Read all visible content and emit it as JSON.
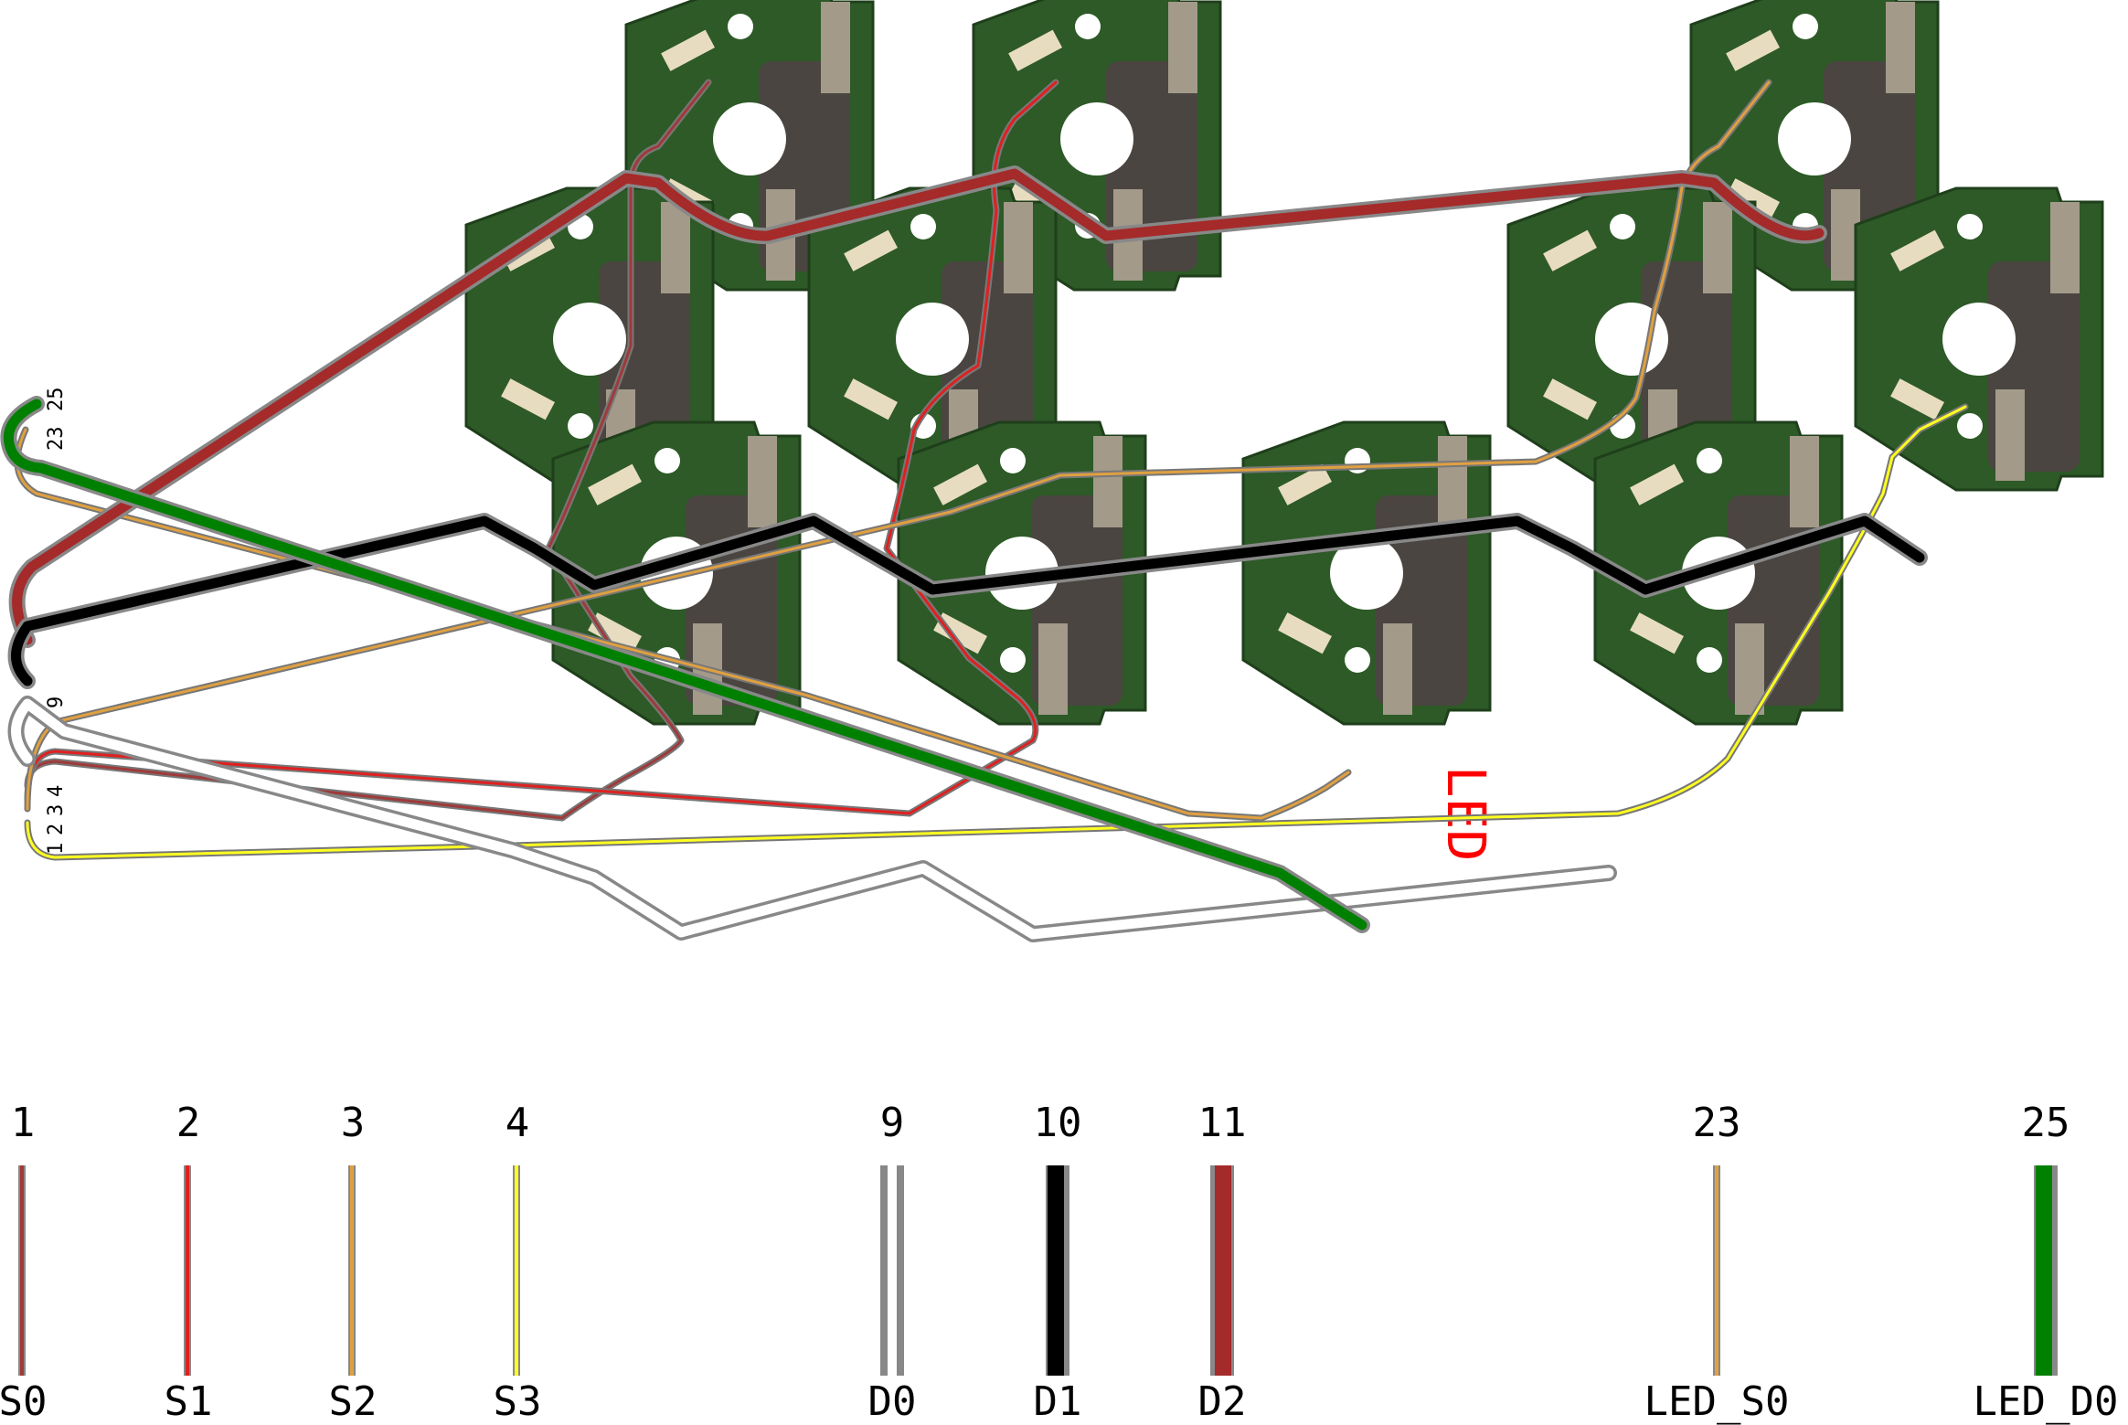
{
  "connector": {
    "labels": [
      {
        "id": "c25",
        "text": "25"
      },
      {
        "id": "c23",
        "text": "23"
      },
      {
        "id": "c9",
        "text": "9"
      },
      {
        "id": "c4",
        "text": "4"
      },
      {
        "id": "c3",
        "text": "3"
      },
      {
        "id": "c2",
        "text": "2"
      },
      {
        "id": "c1",
        "text": "1"
      }
    ]
  },
  "switch_label": "LED",
  "wires": [
    {
      "pin": "1",
      "name": "S0",
      "color": "#a03a3a"
    },
    {
      "pin": "2",
      "name": "S1",
      "color": "#e02020"
    },
    {
      "pin": "3",
      "name": "S2",
      "color": "#e0a040"
    },
    {
      "pin": "4",
      "name": "S3",
      "color": "#ffff20"
    },
    {
      "pin": "9",
      "name": "D0",
      "color": "#ffffff"
    },
    {
      "pin": "10",
      "name": "D1",
      "color": "#000000"
    },
    {
      "pin": "11",
      "name": "D2",
      "color": "#a52a2a"
    },
    {
      "pin": "23",
      "name": "LED_S0",
      "color": "#e0a040"
    },
    {
      "pin": "25",
      "name": "LED_D0",
      "color": "#008000"
    }
  ],
  "colors": {
    "pcb": "#2d5a27",
    "pcb_edge": "#1f3f1b",
    "socket": "#4a4540",
    "pad": "#a39a8a",
    "diode": "#e8dcc0",
    "label_red": "#ff0000"
  }
}
